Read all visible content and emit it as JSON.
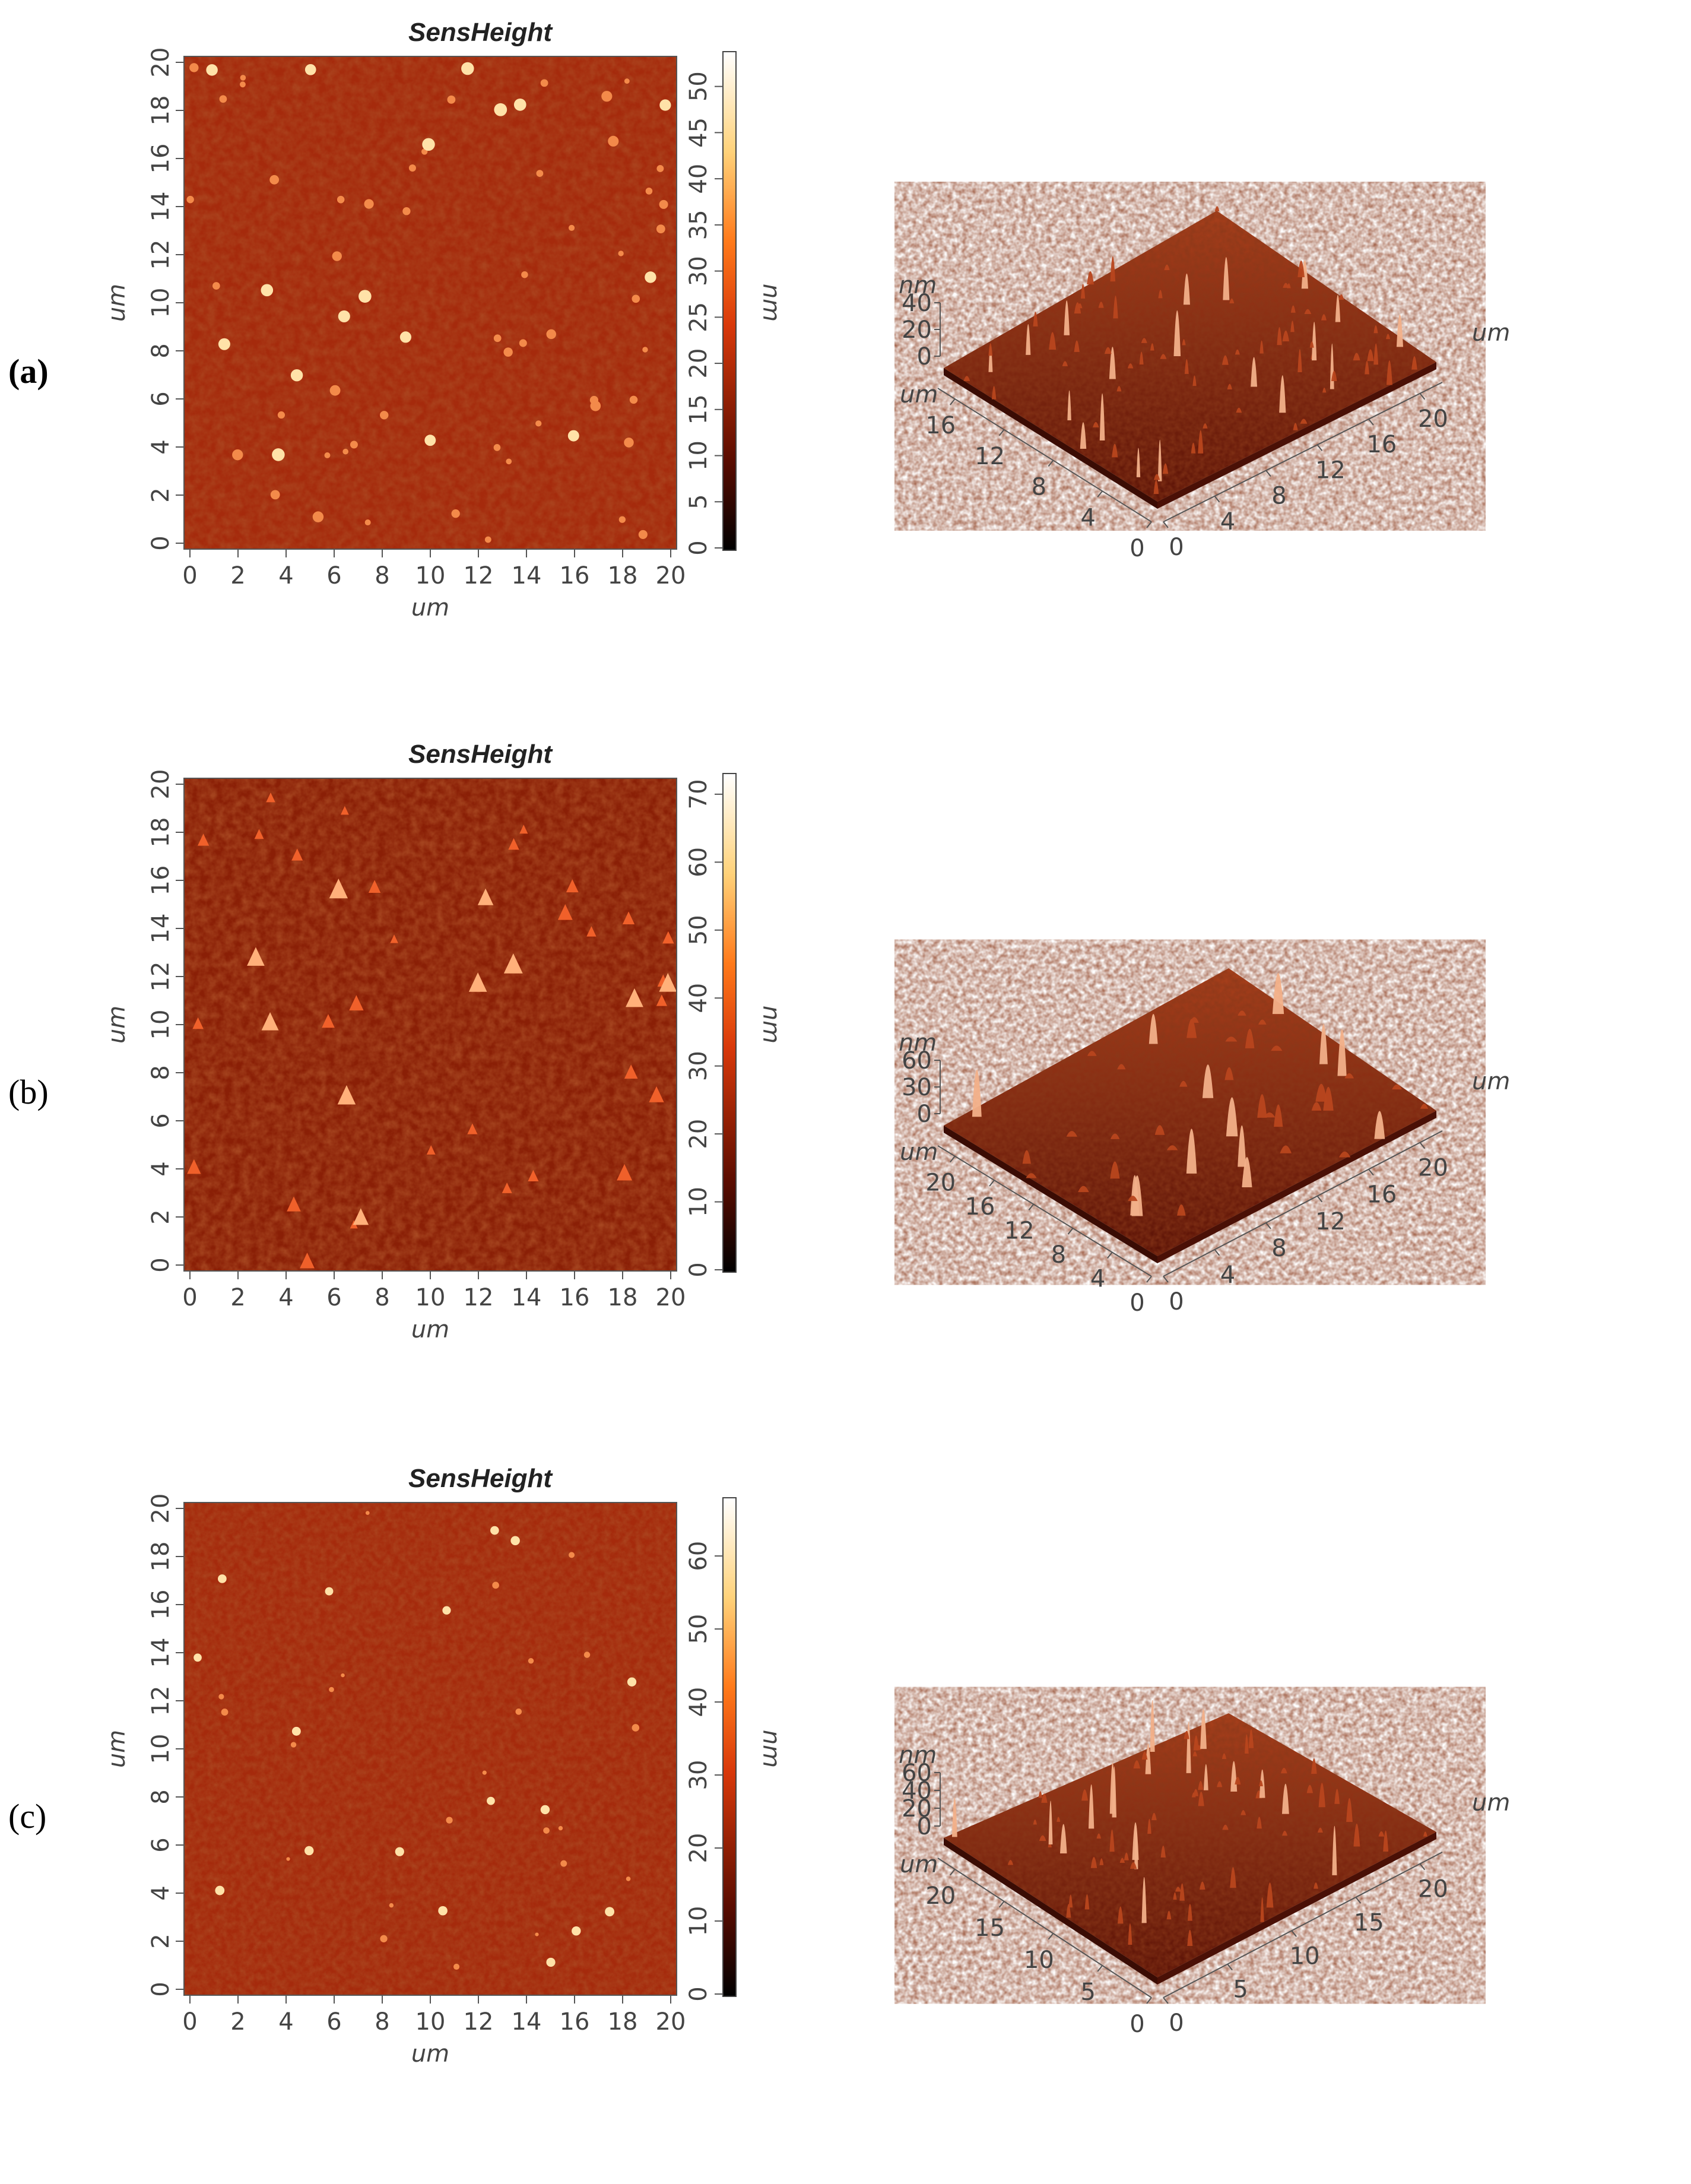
{
  "panels": [
    {
      "label": "(a)",
      "label_bold": true,
      "title": "SensHeight",
      "map": {
        "x_ticks": [
          "0",
          "2",
          "4",
          "6",
          "8",
          "10",
          "12",
          "14",
          "16",
          "18",
          "20"
        ],
        "y_ticks": [
          "0",
          "2",
          "4",
          "6",
          "8",
          "10",
          "12",
          "14",
          "16",
          "18",
          "20"
        ],
        "x_unit": "um",
        "y_unit": "um",
        "colorbar_ticks": [
          "0",
          "5",
          "10",
          "15",
          "20",
          "25",
          "30",
          "35",
          "40",
          "45",
          "50"
        ],
        "colorbar_unit": "nm",
        "colorbar_max": 53
      },
      "surface3d": {
        "z_unit": "nm",
        "z_ticks": [
          "0",
          "20",
          "40"
        ],
        "left_axis_unit": "um",
        "left_axis_ticks": [
          "0",
          "4",
          "8",
          "12",
          "16"
        ],
        "right_axis_unit": "um",
        "right_axis_ticks": [
          "0",
          "4",
          "8",
          "12",
          "16",
          "20"
        ]
      }
    },
    {
      "label": "(b)",
      "label_bold": false,
      "title": "SensHeight",
      "map": {
        "x_ticks": [
          "0",
          "2",
          "4",
          "6",
          "8",
          "10",
          "12",
          "14",
          "16",
          "18",
          "20"
        ],
        "y_ticks": [
          "0",
          "2",
          "4",
          "6",
          "8",
          "10",
          "12",
          "14",
          "16",
          "18",
          "20"
        ],
        "x_unit": "um",
        "y_unit": "um",
        "colorbar_ticks": [
          "0",
          "10",
          "20",
          "30",
          "40",
          "50",
          "60",
          "70"
        ],
        "colorbar_unit": "nm",
        "colorbar_max": 72
      },
      "surface3d": {
        "z_unit": "nm",
        "z_ticks": [
          "0",
          "30",
          "60"
        ],
        "left_axis_unit": "um",
        "left_axis_ticks": [
          "0",
          "4",
          "8",
          "12",
          "16",
          "20"
        ],
        "right_axis_unit": "um",
        "right_axis_ticks": [
          "0",
          "4",
          "8",
          "12",
          "16",
          "20"
        ]
      }
    },
    {
      "label": "(c)",
      "label_bold": false,
      "title": "SensHeight",
      "map": {
        "x_ticks": [
          "0",
          "2",
          "4",
          "6",
          "8",
          "10",
          "12",
          "14",
          "16",
          "18",
          "20"
        ],
        "y_ticks": [
          "0",
          "2",
          "4",
          "6",
          "8",
          "10",
          "12",
          "14",
          "16",
          "18",
          "20"
        ],
        "x_unit": "um",
        "y_unit": "um",
        "colorbar_ticks": [
          "0",
          "10",
          "20",
          "30",
          "40",
          "50",
          "60"
        ],
        "colorbar_unit": "nm",
        "colorbar_max": 67
      },
      "surface3d": {
        "z_unit": "nm",
        "z_ticks": [
          "0",
          "20",
          "40",
          "60"
        ],
        "left_axis_unit": "um",
        "left_axis_ticks": [
          "0",
          "5",
          "10",
          "15",
          "20"
        ],
        "right_axis_unit": "um",
        "right_axis_ticks": [
          "0",
          "5",
          "10",
          "15",
          "20"
        ]
      }
    }
  ],
  "colors": {
    "map_base": "#a52a0c",
    "map_dark": "#6e1a06",
    "peak": "#ffe2a8",
    "surface_top": "#8a2c12",
    "surface_side": "#3a0c04"
  }
}
